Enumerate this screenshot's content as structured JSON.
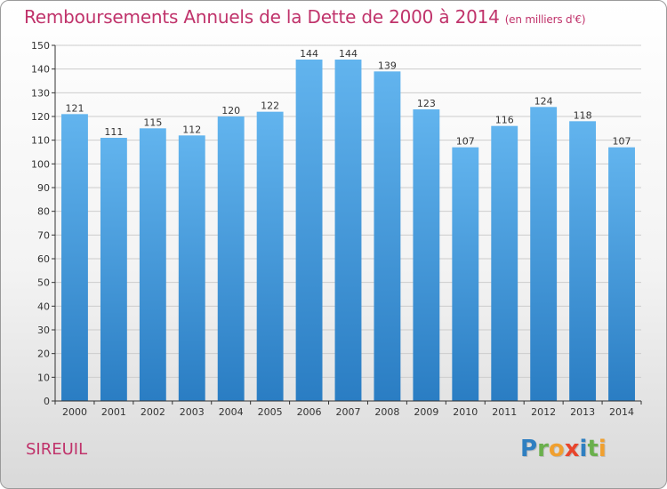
{
  "header": {
    "title": "Remboursements Annuels de la Dette de 2000 à 2014",
    "subtitle": "(en milliers d'€)"
  },
  "footer": {
    "commune": "SIREUIL",
    "logo": {
      "letters": [
        "P",
        "r",
        "o",
        "x",
        "i",
        "t",
        "i"
      ],
      "colors": [
        "#2f7fc1",
        "#6ab04c",
        "#f0a030",
        "#e8452c",
        "#2f7fc1",
        "#6ab04c",
        "#f0a030"
      ]
    }
  },
  "colors": {
    "title": "#c0336b",
    "bar_top": "#62b4ee",
    "bar_bottom": "#2a7dc3",
    "axis": "#333333",
    "grid": "#cccccc"
  },
  "chart_data": {
    "type": "bar",
    "title": "Remboursements Annuels de la Dette de 2000 à 2014",
    "subtitle": "(en milliers d'€)",
    "xlabel": "",
    "ylabel": "",
    "ylim": [
      0,
      150
    ],
    "ytick_step": 10,
    "grid": true,
    "categories": [
      "2000",
      "2001",
      "2002",
      "2003",
      "2004",
      "2005",
      "2006",
      "2007",
      "2008",
      "2009",
      "2010",
      "2011",
      "2012",
      "2013",
      "2014"
    ],
    "values": [
      121,
      111,
      115,
      112,
      120,
      122,
      144,
      144,
      139,
      123,
      107,
      116,
      124,
      118,
      107
    ]
  }
}
